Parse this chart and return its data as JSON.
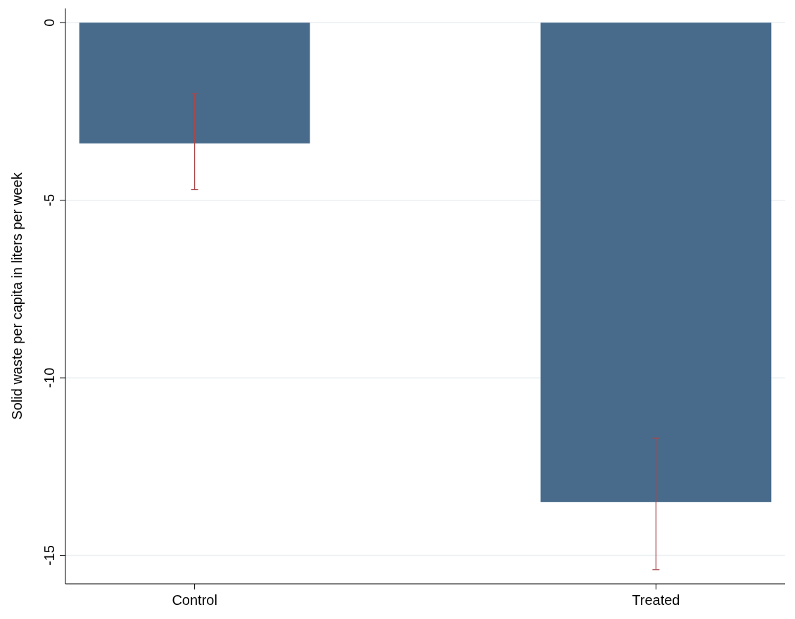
{
  "chart_data": {
    "type": "bar",
    "ylabel": "Solid waste per capita in liters per week",
    "categories": [
      "Control",
      "Treated"
    ],
    "values": [
      -3.4,
      -13.5
    ],
    "errors": [
      [
        -4.7,
        -2.0
      ],
      [
        -15.4,
        -11.7
      ]
    ],
    "color": "#486b8c",
    "ylim": [
      -15.8,
      0.4
    ],
    "yticks": [
      -15,
      -10,
      -5,
      0
    ],
    "grid": "y"
  }
}
